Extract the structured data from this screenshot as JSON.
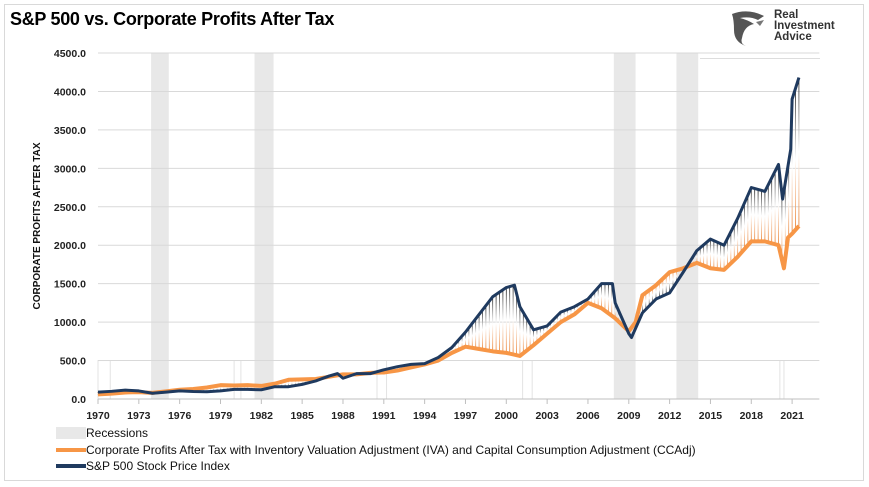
{
  "logo": {
    "text": "Real Investment Advice"
  },
  "chart_data": {
    "type": "line",
    "title": "S&P 500 vs. Corporate Profits After Tax",
    "ylabel": "CORPORATE PROFITS AFTER TAX",
    "xlabel": "",
    "ylim": [
      0,
      4500
    ],
    "xlim": [
      1970,
      2023
    ],
    "yticks": [
      "0.0",
      "500.0",
      "1000.0",
      "1500.0",
      "2000.0",
      "2500.0",
      "3000.0",
      "3500.0",
      "4000.0",
      "4500.0"
    ],
    "xticks": [
      "1970",
      "1973",
      "1976",
      "1979",
      "1982",
      "1985",
      "1988",
      "1991",
      "1994",
      "1997",
      "2000",
      "2003",
      "2006",
      "2009",
      "2012",
      "2015",
      "2018",
      "2021"
    ],
    "grid": true,
    "legend_placement": "bottom",
    "colors": {
      "profits": "#f79646",
      "sp500": "#1f3a5f",
      "recession": "#e8e8e8"
    },
    "recessions": [
      [
        1970,
        1970.9
      ],
      [
        1973.9,
        1975.2
      ],
      [
        1980,
        1980.5
      ],
      [
        1981.5,
        1982.9
      ],
      [
        1990.5,
        1991.2
      ],
      [
        2001.2,
        2001.9
      ],
      [
        2007.9,
        2009.5
      ],
      [
        2012.5,
        2014.1
      ],
      [
        2020.1,
        2020.4
      ]
    ],
    "legend": {
      "recessions": "Recessions"
    },
    "series": [
      {
        "name": "Corporate Profits After Tax with Inventory Valuation Adjustment (IVA) and Capital Consumption Adjustment (CCAdj)",
        "key": "profits",
        "x": [
          1970,
          1971,
          1972,
          1973,
          1974,
          1975,
          1976,
          1977,
          1978,
          1979,
          1980,
          1981,
          1982,
          1983,
          1984,
          1985,
          1986,
          1987,
          1988,
          1989,
          1990,
          1991,
          1992,
          1993,
          1994,
          1995,
          1996,
          1997,
          1998,
          1999,
          2000,
          2001,
          2002,
          2003,
          2004,
          2005,
          2006,
          2007,
          2008,
          2009,
          2009.5,
          2010,
          2011,
          2012,
          2013,
          2014,
          2015,
          2016,
          2017,
          2018,
          2019,
          2020,
          2020.4,
          2020.7,
          2021,
          2021.5
        ],
        "y": [
          60,
          70,
          85,
          90,
          80,
          100,
          120,
          130,
          150,
          180,
          175,
          180,
          170,
          200,
          250,
          255,
          260,
          290,
          320,
          320,
          340,
          345,
          370,
          410,
          450,
          500,
          600,
          680,
          650,
          620,
          600,
          560,
          700,
          850,
          1000,
          1100,
          1250,
          1180,
          1050,
          880,
          1000,
          1350,
          1480,
          1650,
          1700,
          1770,
          1700,
          1680,
          1850,
          2050,
          2050,
          2000,
          1700,
          2100,
          2150,
          2250
        ]
      },
      {
        "name": "S&P 500 Stock Price Index",
        "key": "sp500",
        "x": [
          1970,
          1971,
          1972,
          1973,
          1974,
          1975,
          1976,
          1977,
          1978,
          1979,
          1980,
          1981,
          1982,
          1983,
          1984,
          1985,
          1986,
          1987,
          1987.6,
          1988,
          1989,
          1990,
          1991,
          1992,
          1993,
          1994,
          1995,
          1996,
          1997,
          1998,
          1999,
          2000,
          2000.6,
          2001,
          2002,
          2003,
          2004,
          2005,
          2006,
          2007,
          2007.8,
          2008,
          2009,
          2009.2,
          2010,
          2011,
          2012,
          2013,
          2014,
          2015,
          2016,
          2017,
          2018,
          2019,
          2020,
          2020.3,
          2020.9,
          2021,
          2021.5
        ],
        "y": [
          90,
          100,
          115,
          105,
          75,
          90,
          105,
          98,
          95,
          105,
          125,
          125,
          120,
          160,
          160,
          190,
          235,
          300,
          330,
          270,
          330,
          330,
          380,
          420,
          450,
          460,
          540,
          670,
          870,
          1100,
          1330,
          1450,
          1480,
          1200,
          900,
          950,
          1130,
          1200,
          1300,
          1500,
          1500,
          1250,
          850,
          800,
          1120,
          1300,
          1380,
          1650,
          1930,
          2080,
          2000,
          2350,
          2750,
          2700,
          3050,
          2600,
          3250,
          3900,
          4180
        ]
      }
    ]
  }
}
